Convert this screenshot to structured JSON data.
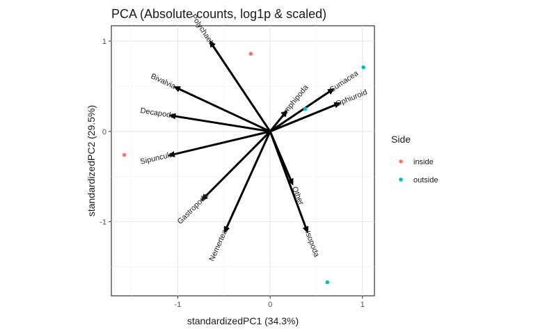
{
  "chart_data": {
    "type": "scatter",
    "title": "PCA (Absolute counts, log1p & scaled)",
    "xlabel": "standardizedPC1 (34.3%)",
    "ylabel": "standardizedPC2 (29.5%)",
    "xlim": [
      -1.72,
      1.13
    ],
    "ylim": [
      -1.82,
      1.17
    ],
    "x_ticks": [
      -1,
      0,
      1
    ],
    "y_ticks": [
      -1,
      0,
      1
    ],
    "grid": true,
    "legend": {
      "title": "Side",
      "position": "right"
    },
    "series": [
      {
        "name": "inside",
        "color": "#F8766D",
        "points": [
          {
            "x": -0.21,
            "y": 0.86
          },
          {
            "x": -1.58,
            "y": -0.26
          }
        ]
      },
      {
        "name": "outside",
        "color": "#00BFC4",
        "points": [
          {
            "x": 1.01,
            "y": 0.71
          },
          {
            "x": 0.38,
            "y": 0.25
          },
          {
            "x": 0.62,
            "y": -1.67
          }
        ]
      }
    ],
    "loadings": [
      {
        "label": "Polychaete",
        "x": -0.66,
        "y": 1.01
      },
      {
        "label": "Bivalvia",
        "x": -1.05,
        "y": 0.5
      },
      {
        "label": "Decapoda",
        "x": -1.1,
        "y": 0.18
      },
      {
        "label": "Sipuncula",
        "x": -1.11,
        "y": -0.27
      },
      {
        "label": "Gastropoda",
        "x": -0.75,
        "y": -0.77
      },
      {
        "label": "Nemertean",
        "x": -0.5,
        "y": -1.13
      },
      {
        "label": "Isopoda",
        "x": 0.41,
        "y": -1.13
      },
      {
        "label": "Other",
        "x": 0.25,
        "y": -0.6
      },
      {
        "label": "Amphipoda",
        "x": 0.19,
        "y": 0.24
      },
      {
        "label": "Cumacea",
        "x": 0.7,
        "y": 0.48
      },
      {
        "label": "Ophiuroid",
        "x": 0.77,
        "y": 0.32
      }
    ]
  }
}
